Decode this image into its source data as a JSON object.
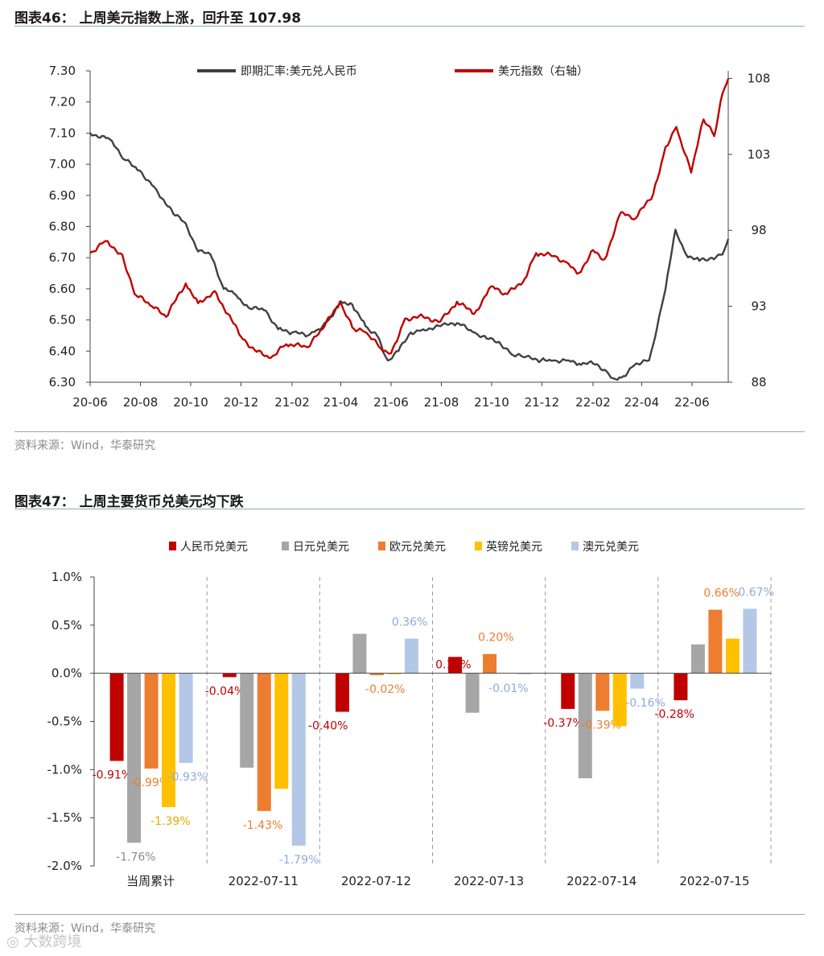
{
  "fig1": {
    "title": "图表46：  上周美元指数上涨，回升至 107.98",
    "source": "资料来源：Wind，华泰研究",
    "chart_data": {
      "type": "line",
      "x_ticks": [
        "20-06",
        "20-08",
        "20-10",
        "20-12",
        "21-02",
        "21-04",
        "21-06",
        "21-08",
        "21-10",
        "21-12",
        "22-02",
        "22-04",
        "22-06"
      ],
      "y_left": {
        "ticks": [
          "7.30",
          "7.20",
          "7.10",
          "7.00",
          "6.90",
          "6.80",
          "6.70",
          "6.60",
          "6.50",
          "6.40",
          "6.30"
        ],
        "ylim": [
          6.3,
          7.3
        ]
      },
      "y_right": {
        "ticks": [
          "108",
          "103",
          "98",
          "93",
          "88"
        ],
        "ylim": [
          88,
          108.5
        ]
      },
      "legend_position": "top",
      "series": [
        {
          "name": "即期汇率:美元兑人民币",
          "axis": "left",
          "color": "#404040",
          "points": [
            [
              "2020-06-01",
              7.1
            ],
            [
              "2020-06-25",
              7.08
            ],
            [
              "2020-07-10",
              7.02
            ],
            [
              "2020-07-31",
              6.98
            ],
            [
              "2020-08-20",
              6.92
            ],
            [
              "2020-09-10",
              6.84
            ],
            [
              "2020-09-25",
              6.81
            ],
            [
              "2020-10-10",
              6.72
            ],
            [
              "2020-10-25",
              6.71
            ],
            [
              "2020-11-10",
              6.6
            ],
            [
              "2020-11-25",
              6.58
            ],
            [
              "2020-12-10",
              6.54
            ],
            [
              "2020-12-31",
              6.53
            ],
            [
              "2021-01-15",
              6.47
            ],
            [
              "2021-02-01",
              6.46
            ],
            [
              "2021-02-20",
              6.45
            ],
            [
              "2021-03-05",
              6.47
            ],
            [
              "2021-03-20",
              6.51
            ],
            [
              "2021-04-01",
              6.56
            ],
            [
              "2021-04-15",
              6.55
            ],
            [
              "2021-05-01",
              6.48
            ],
            [
              "2021-05-15",
              6.45
            ],
            [
              "2021-05-28",
              6.37
            ],
            [
              "2021-06-10",
              6.4
            ],
            [
              "2021-06-25",
              6.46
            ],
            [
              "2021-07-10",
              6.47
            ],
            [
              "2021-07-31",
              6.48
            ],
            [
              "2021-08-20",
              6.49
            ],
            [
              "2021-09-10",
              6.46
            ],
            [
              "2021-09-25",
              6.44
            ],
            [
              "2021-10-10",
              6.43
            ],
            [
              "2021-10-25",
              6.39
            ],
            [
              "2021-11-10",
              6.38
            ],
            [
              "2021-11-30",
              6.37
            ],
            [
              "2021-12-15",
              6.37
            ],
            [
              "2021-12-31",
              6.37
            ],
            [
              "2022-01-15",
              6.36
            ],
            [
              "2022-02-01",
              6.36
            ],
            [
              "2022-02-15",
              6.34
            ],
            [
              "2022-02-28",
              6.31
            ],
            [
              "2022-03-10",
              6.32
            ],
            [
              "2022-03-25",
              6.36
            ],
            [
              "2022-04-10",
              6.37
            ],
            [
              "2022-04-20",
              6.48
            ],
            [
              "2022-04-30",
              6.6
            ],
            [
              "2022-05-12",
              6.79
            ],
            [
              "2022-05-25",
              6.71
            ],
            [
              "2022-06-10",
              6.69
            ],
            [
              "2022-06-25",
              6.7
            ],
            [
              "2022-07-08",
              6.71
            ],
            [
              "2022-07-15",
              6.76
            ]
          ]
        },
        {
          "name": "美元指数（右轴）",
          "axis": "right",
          "color": "#c00000",
          "points": [
            [
              "2020-06-01",
              96.5
            ],
            [
              "2020-06-20",
              97.3
            ],
            [
              "2020-07-10",
              96.4
            ],
            [
              "2020-07-25",
              93.8
            ],
            [
              "2020-08-15",
              93.0
            ],
            [
              "2020-09-01",
              92.3
            ],
            [
              "2020-09-25",
              94.5
            ],
            [
              "2020-10-10",
              93.2
            ],
            [
              "2020-10-30",
              94.0
            ],
            [
              "2020-11-15",
              92.5
            ],
            [
              "2020-12-01",
              91.0
            ],
            [
              "2020-12-20",
              90.0
            ],
            [
              "2021-01-06",
              89.6
            ],
            [
              "2021-01-25",
              90.5
            ],
            [
              "2021-02-20",
              90.3
            ],
            [
              "2021-03-10",
              91.5
            ],
            [
              "2021-03-31",
              93.3
            ],
            [
              "2021-04-15",
              91.6
            ],
            [
              "2021-05-01",
              91.3
            ],
            [
              "2021-05-20",
              90.2
            ],
            [
              "2021-06-01",
              89.9
            ],
            [
              "2021-06-18",
              92.2
            ],
            [
              "2021-07-10",
              92.3
            ],
            [
              "2021-07-31",
              92.0
            ],
            [
              "2021-08-20",
              93.3
            ],
            [
              "2021-09-10",
              92.5
            ],
            [
              "2021-09-30",
              94.3
            ],
            [
              "2021-10-20",
              93.8
            ],
            [
              "2021-11-10",
              94.8
            ],
            [
              "2021-11-24",
              96.5
            ],
            [
              "2021-12-15",
              96.3
            ],
            [
              "2021-12-31",
              95.9
            ],
            [
              "2022-01-15",
              95.2
            ],
            [
              "2022-02-01",
              96.7
            ],
            [
              "2022-02-15",
              96.1
            ],
            [
              "2022-03-07",
              99.2
            ],
            [
              "2022-03-25",
              98.8
            ],
            [
              "2022-04-15",
              100.4
            ],
            [
              "2022-04-30",
              103.5
            ],
            [
              "2022-05-13",
              104.8
            ],
            [
              "2022-05-31",
              101.8
            ],
            [
              "2022-06-15",
              105.3
            ],
            [
              "2022-06-28",
              104.2
            ],
            [
              "2022-07-08",
              107.0
            ],
            [
              "2022-07-15",
              107.98
            ]
          ]
        }
      ]
    }
  },
  "fig2": {
    "title": "图表47：  上周主要货币兑美元均下跌",
    "source": "资料来源：Wind，华泰研究",
    "chart_data": {
      "type": "bar",
      "categories": [
        "当周累计",
        "2022-07-11",
        "2022-07-12",
        "2022-07-13",
        "2022-07-14",
        "2022-07-15"
      ],
      "y_ticks": [
        "1.0%",
        "0.5%",
        "0.0%",
        "-0.5%",
        "-1.0%",
        "-1.5%",
        "-2.0%"
      ],
      "ylim": [
        -2.0,
        1.0
      ],
      "legend_position": "top",
      "series": [
        {
          "name": "人民币兑美元",
          "color": "#c00000",
          "values": [
            -0.91,
            -0.04,
            -0.4,
            0.17,
            -0.37,
            -0.28
          ],
          "labels": [
            "-0.91%",
            "-0.04%",
            "-0.40%",
            "0.17%",
            "-0.37%",
            "-0.28%"
          ],
          "label_color": "#c00000"
        },
        {
          "name": "日元兑美元",
          "color": "#a6a6a6",
          "values": [
            -1.76,
            -0.98,
            0.41,
            -0.41,
            -1.09,
            0.3
          ],
          "labels": [
            "-1.76%",
            "",
            "",
            "",
            "",
            ""
          ],
          "label_color": "#8c8c8c"
        },
        {
          "name": "欧元兑美元",
          "color": "#ed7d31",
          "values": [
            -0.99,
            -1.43,
            -0.02,
            0.2,
            -0.39,
            0.66
          ],
          "labels": [
            "-0.99%",
            "-1.43%",
            "-0.02%",
            "0.20%",
            "-0.39%",
            "0.66%"
          ],
          "label_color": "#ed7d31"
        },
        {
          "name": "英镑兑美元",
          "color": "#ffc000",
          "values": [
            -1.39,
            -1.2,
            -0.01,
            0.0,
            -0.55,
            0.36
          ],
          "labels": [
            "-1.39%",
            "",
            "",
            "",
            "",
            ""
          ],
          "label_color": "#e6a800"
        },
        {
          "name": "澳元兑美元",
          "color": "#b4c7e7",
          "values": [
            -0.93,
            -1.79,
            0.36,
            -0.01,
            -0.16,
            0.67
          ],
          "labels": [
            "-0.93%",
            "-1.79%",
            "0.36%",
            "-0.01%",
            "-0.16%",
            "0.67%"
          ],
          "label_color": "#8faadc"
        }
      ]
    }
  },
  "watermark": "大数跨境"
}
